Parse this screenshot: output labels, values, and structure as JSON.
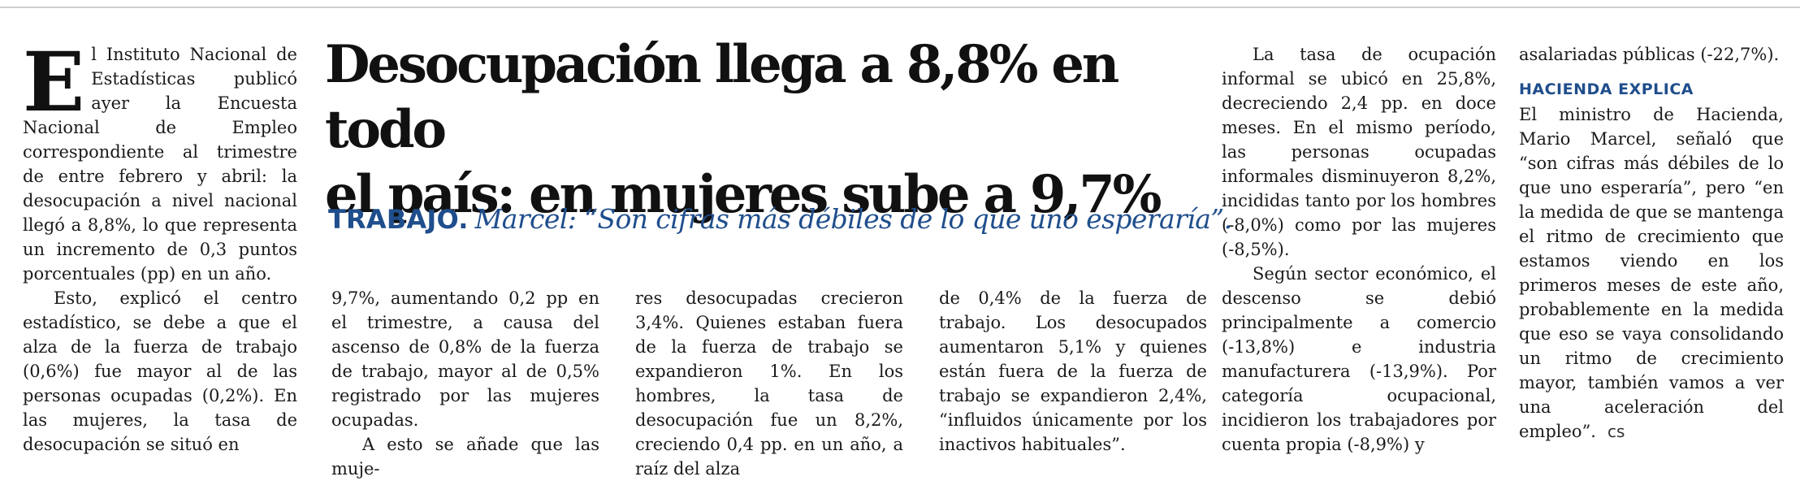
{
  "headline": {
    "line1": "Desocupación llega a 8,8% en todo",
    "line2": "el país: en mujeres sube a 9,7%"
  },
  "deck": {
    "kicker": "TRABAJO.",
    "text": "Marcel: “Son cifras más débiles de lo que uno esperaría”."
  },
  "col1": {
    "dropcap": "E",
    "p1_rest": "l Instituto Nacional de Estadísticas publicó ayer la Encuesta Nacional de Empleo correspondiente al trimestre de entre febrero y abril: la desocupación a nivel nacional llegó a 8,8%, lo que representa un incremento de 0,3 puntos porcentuales (pp) en un año.",
    "p2": "Esto, explicó el centro estadístico, se debe a que el alza de la fuerza de trabajo (0,6%) fue mayor al de las personas ocupadas (0,2%). En las mujeres, la tasa de desocupación se situó en"
  },
  "col2": {
    "p1": "9,7%, aumentando 0,2 pp en el trimestre, a causa del ascenso de 0,8% de la fuerza de trabajo, mayor al de 0,5% registrado por las mujeres ocupadas.",
    "p2": "A esto se añade que las muje-"
  },
  "col3": {
    "p1": "res desocupadas crecieron 3,4%. Quienes estaban fuera de la fuerza de trabajo se expandieron 1%. En los hombres, la tasa de desocupación fue un 8,2%, creciendo 0,4 pp. en un año, a raíz del alza"
  },
  "col4": {
    "p1": "de 0,4% de la fuerza de trabajo. Los desocupados aumentaron 5,1% y quienes están fuera de la fuerza de trabajo se expandieron 2,4%, “influidos únicamente por los inactivos habituales”."
  },
  "col6": {
    "p1": "La tasa de ocupación informal se ubicó en 25,8%, decreciendo 2,4 pp. en doce meses. En el mismo período, las personas ocupadas informales disminuyeron 8,2%, incididas tanto por los hombres (-8,0%) como por las mujeres (-8,5%).",
    "p2": "Según sector económico, el descenso se debió principalmente a comercio (-13,8%) e industria manufacturera (-13,9%). Por categoría ocupacional, incidieron los trabajadores por cuenta propia (-8,9%) y"
  },
  "col7": {
    "p1": "asalariadas públicas (-22,7%).",
    "subhead": "HACIENDA EXPLICA",
    "p2": "El ministro de Hacienda, Mario Marcel, señaló que “son cifras más débiles de lo que uno esperaría”, pero “en la medida de que se mantenga el ritmo de crecimiento que estamos viendo en los primeros meses de este año, probablemente en la medida que eso se vaya consolidando un ritmo de crecimiento mayor, también vamos a ver una aceleración del empleo”.",
    "endmark": "cs"
  },
  "colors": {
    "accent": "#1f4e8c",
    "text": "#1a1a1a",
    "rule": "#cfcfcf"
  }
}
